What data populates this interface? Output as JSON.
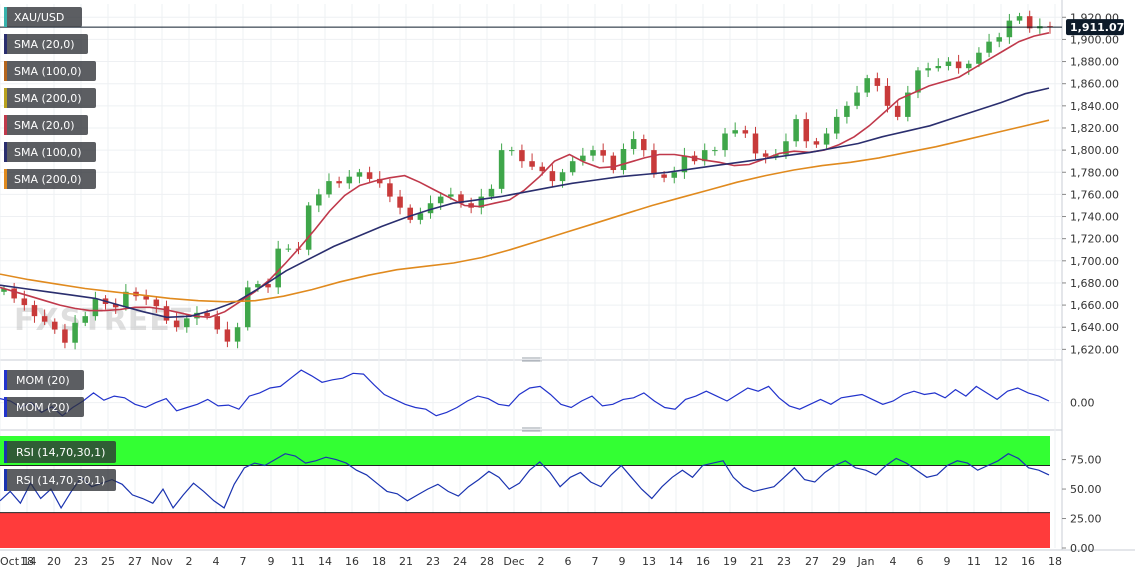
{
  "colors": {
    "price_candle_up": "#3fa64a",
    "price_candle_down": "#c83a3a",
    "sma20": "#c0394b",
    "sma100": "#2a2e6e",
    "sma200": "#e08a1e",
    "mom_line": "#2233cc",
    "rsi_line": "#1a33b0",
    "rsi_overbought_zone": "#33ff33",
    "rsi_oversold_zone": "#ff3b3b",
    "legend_bg": "#2e3136",
    "price_label_bg": "#0d1b2a"
  },
  "legend": {
    "symbol": "XAU/USD",
    "price_indicators": [
      "SMA (20,0)",
      "SMA (100,0)",
      "SMA (200,0)",
      "SMA (20,0)",
      "SMA (100,0)",
      "SMA (200,0)"
    ],
    "mom_indicators": [
      "MOM (20)",
      "MOM (20)"
    ],
    "rsi_indicators": [
      "RSI (14,70,30,1)",
      "RSI (14,70,30,1)"
    ]
  },
  "watermark": "FXSTREET",
  "current_price_label": "1,911.07",
  "chart_data": [
    {
      "type": "line",
      "title": "XAU/USD",
      "ylim": [
        1614,
        1932
      ],
      "y_ticks": [
        "1,920.00",
        "1,900.00",
        "1,880.00",
        "1,860.00",
        "1,840.00",
        "1,820.00",
        "1,800.00",
        "1,780.00",
        "1,760.00",
        "1,740.00",
        "1,720.00",
        "1,700.00",
        "1,680.00",
        "1,660.00",
        "1,640.00",
        "1,620.00"
      ],
      "x_ticks": [
        "Oct 14",
        "18",
        "20",
        "23",
        "25",
        "27",
        "Nov",
        "2",
        "4",
        "7",
        "9",
        "11",
        "14",
        "16",
        "18",
        "21",
        "23",
        "24",
        "28",
        "Dec",
        "2",
        "6",
        "7",
        "9",
        "13",
        "14",
        "16",
        "19",
        "21",
        "23",
        "27",
        "29",
        "Jan",
        "4",
        "6",
        "9",
        "11",
        "12",
        "16",
        "18"
      ],
      "current_price": 1911.07,
      "series": [
        {
          "name": "XAU/USD",
          "values": [
            1675,
            1666,
            1660,
            1650,
            1645,
            1638,
            1626,
            1644,
            1650,
            1666,
            1661,
            1658,
            1672,
            1668,
            1665,
            1659,
            1646,
            1640,
            1648,
            1653,
            1650,
            1638,
            1627,
            1640,
            1676,
            1679,
            1676,
            1711,
            1711,
            1710,
            1750,
            1760,
            1772,
            1770,
            1776,
            1780,
            1774,
            1770,
            1758,
            1748,
            1737,
            1743,
            1752,
            1758,
            1760,
            1752,
            1748,
            1758,
            1765,
            1800,
            1800,
            1790,
            1785,
            1781,
            1772,
            1780,
            1790,
            1795,
            1800,
            1795,
            1782,
            1801,
            1810,
            1800,
            1778,
            1775,
            1780,
            1795,
            1790,
            1800,
            1800,
            1815,
            1818,
            1815,
            1797,
            1794,
            1796,
            1808,
            1828,
            1808,
            1805,
            1815,
            1830,
            1840,
            1852,
            1865,
            1858,
            1840,
            1830,
            1852,
            1872,
            1874,
            1876,
            1880,
            1874,
            1878,
            1888,
            1898,
            1902,
            1917,
            1921,
            1910,
            1912,
            1911.07
          ]
        },
        {
          "name": "SMA (20,0)",
          "values": [
            1676,
            1672,
            1668,
            1664,
            1660,
            1657,
            1655,
            1655,
            1656,
            1658,
            1658,
            1656,
            1653,
            1650,
            1649,
            1654,
            1663,
            1672,
            1683,
            1697,
            1712,
            1728,
            1745,
            1759,
            1768,
            1772,
            1775,
            1777,
            1771,
            1764,
            1757,
            1750,
            1749,
            1752,
            1755,
            1764,
            1776,
            1790,
            1796,
            1789,
            1784,
            1785,
            1789,
            1793,
            1796,
            1796,
            1794,
            1791,
            1789,
            1786,
            1787,
            1792,
            1797,
            1799,
            1798,
            1800,
            1805,
            1812,
            1822,
            1834,
            1846,
            1852,
            1858,
            1862,
            1866,
            1874,
            1882,
            1890,
            1898,
            1903,
            1906
          ]
        },
        {
          "name": "SMA (100,0)",
          "values": [
            1678,
            1675,
            1672,
            1669,
            1666,
            1660,
            1654,
            1649,
            1650,
            1656,
            1664,
            1677,
            1691,
            1702,
            1713,
            1722,
            1731,
            1739,
            1746,
            1752,
            1755,
            1758,
            1762,
            1766,
            1770,
            1773,
            1776,
            1778,
            1780,
            1783,
            1786,
            1789,
            1792,
            1795,
            1798,
            1802,
            1806,
            1812,
            1817,
            1822,
            1829,
            1836,
            1843,
            1851,
            1856
          ]
        },
        {
          "name": "SMA (200,0)",
          "values": [
            1688,
            1683,
            1679,
            1675,
            1672,
            1669,
            1666,
            1664,
            1663,
            1664,
            1668,
            1674,
            1681,
            1687,
            1692,
            1695,
            1698,
            1703,
            1710,
            1718,
            1726,
            1734,
            1742,
            1750,
            1757,
            1764,
            1771,
            1777,
            1782,
            1786,
            1789,
            1793,
            1798,
            1803,
            1809,
            1815,
            1821,
            1827
          ]
        }
      ]
    },
    {
      "type": "line",
      "title": "MOM (20)",
      "y_ticks": [
        "0.00"
      ],
      "ylim": [
        -25,
        45
      ],
      "series": [
        {
          "name": "MOM (20)",
          "values": [
            5,
            2,
            -6,
            0,
            -12,
            -5,
            -16,
            -6,
            2,
            12,
            3,
            8,
            6,
            -2,
            -6,
            0,
            5,
            -10,
            -6,
            -2,
            4,
            -4,
            -3,
            -8,
            8,
            12,
            18,
            20,
            30,
            40,
            33,
            25,
            28,
            30,
            36,
            35,
            22,
            10,
            4,
            -2,
            -6,
            -8,
            -16,
            -12,
            -6,
            2,
            8,
            5,
            -2,
            -4,
            10,
            18,
            20,
            10,
            -2,
            -6,
            2,
            8,
            -4,
            -2,
            4,
            6,
            12,
            2,
            -6,
            -8,
            4,
            8,
            14,
            8,
            2,
            10,
            18,
            14,
            20,
            6,
            -4,
            -8,
            -2,
            4,
            -2,
            6,
            8,
            10,
            4,
            -2,
            2,
            10,
            14,
            10,
            12,
            6,
            16,
            8,
            20,
            12,
            4,
            14,
            18,
            12,
            8,
            2
          ]
        }
      ]
    },
    {
      "type": "line",
      "title": "RSI (14,70,30,1)",
      "y_ticks": [
        "75.00",
        "50.00",
        "25.00",
        "0.00"
      ],
      "ylim": [
        0,
        95
      ],
      "overbought": 70,
      "oversold": 30,
      "series": [
        {
          "name": "RSI (14,70,30,1)",
          "values": [
            40,
            48,
            38,
            55,
            42,
            50,
            34,
            48,
            60,
            52,
            55,
            58,
            54,
            45,
            42,
            38,
            50,
            34,
            45,
            55,
            48,
            40,
            34,
            54,
            68,
            72,
            70,
            75,
            80,
            78,
            72,
            74,
            77,
            75,
            72,
            66,
            62,
            55,
            48,
            46,
            40,
            45,
            50,
            54,
            48,
            44,
            52,
            58,
            65,
            60,
            50,
            55,
            66,
            73,
            64,
            52,
            60,
            64,
            56,
            52,
            62,
            70,
            60,
            50,
            42,
            52,
            60,
            66,
            60,
            70,
            72,
            74,
            60,
            52,
            48,
            50,
            52,
            60,
            68,
            58,
            56,
            64,
            70,
            74,
            68,
            66,
            62,
            70,
            76,
            72,
            66,
            60,
            62,
            70,
            74,
            72,
            66,
            70,
            74,
            80,
            76,
            68,
            66,
            62
          ]
        }
      ]
    }
  ]
}
